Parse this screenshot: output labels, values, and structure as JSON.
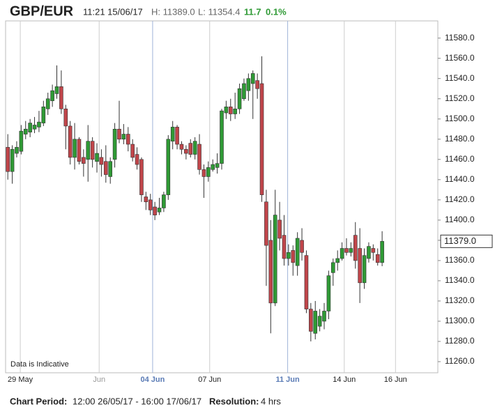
{
  "header": {
    "pair": "GBP/EUR",
    "time": "11:21 15/06/17",
    "high": "H: 11389.0",
    "low": "L: 11354.4",
    "change": "11.7",
    "change_pct": "0.1%"
  },
  "chart_data": {
    "type": "candlestick",
    "open": [
      11472,
      11448,
      11466,
      11468,
      11485,
      11487,
      11490,
      11492,
      11496,
      11510,
      11518,
      11525,
      11532,
      11510,
      11493,
      11462,
      11480,
      11462,
      11460,
      11478,
      11458,
      11462,
      11458,
      11443,
      11460,
      11490,
      11480,
      11485,
      11475,
      11465,
      11460,
      11423,
      11420,
      11413,
      11408,
      11412,
      11425,
      11478,
      11492,
      11475,
      11470,
      11476,
      11465,
      11475,
      11450,
      11443,
      11450,
      11452,
      11456,
      11506,
      11512,
      11505,
      11510,
      11520,
      11528,
      11535,
      11538,
      11535,
      11418,
      11380,
      11318,
      11400,
      11385,
      11362,
      11370,
      11355,
      11380,
      11365,
      11312,
      11288,
      11295,
      11300,
      11310,
      11348,
      11358,
      11362,
      11372,
      11368,
      11385,
      11372,
      11338,
      11362,
      11372,
      11366,
      11358
    ],
    "high": [
      11485,
      11474,
      11478,
      11494,
      11498,
      11500,
      11502,
      11508,
      11518,
      11526,
      11534,
      11553,
      11548,
      11514,
      11498,
      11496,
      11482,
      11470,
      11494,
      11482,
      11476,
      11470,
      11474,
      11462,
      11496,
      11518,
      11495,
      11492,
      11480,
      11472,
      11462,
      11428,
      11426,
      11418,
      11422,
      11428,
      11484,
      11498,
      11494,
      11478,
      11474,
      11480,
      11482,
      11485,
      11455,
      11458,
      11460,
      11466,
      11510,
      11518,
      11520,
      11526,
      11535,
      11540,
      11545,
      11548,
      11545,
      11562,
      11430,
      11400,
      11430,
      11418,
      11405,
      11376,
      11375,
      11388,
      11392,
      11370,
      11318,
      11320,
      11312,
      11318,
      11350,
      11362,
      11370,
      11378,
      11382,
      11378,
      11398,
      11392,
      11372,
      11378,
      11376,
      11372,
      11389
    ],
    "low": [
      11440,
      11436,
      11462,
      11465,
      11480,
      11482,
      11486,
      11487,
      11493,
      11504,
      11512,
      11520,
      11505,
      11470,
      11455,
      11450,
      11455,
      11443,
      11438,
      11452,
      11447,
      11443,
      11437,
      11436,
      11452,
      11476,
      11475,
      11468,
      11458,
      11450,
      11418,
      11410,
      11405,
      11400,
      11405,
      11408,
      11420,
      11470,
      11470,
      11465,
      11460,
      11462,
      11460,
      11445,
      11422,
      11438,
      11448,
      11446,
      11450,
      11500,
      11498,
      11500,
      11505,
      11518,
      11518,
      11500,
      11520,
      11418,
      11335,
      11288,
      11315,
      11370,
      11355,
      11355,
      11345,
      11345,
      11360,
      11308,
      11280,
      11282,
      11290,
      11292,
      11302,
      11335,
      11350,
      11360,
      11365,
      11364,
      11352,
      11318,
      11332,
      11358,
      11360,
      11355,
      11354.4
    ],
    "close": [
      11448,
      11470,
      11472,
      11488,
      11490,
      11496,
      11494,
      11497,
      11512,
      11520,
      11528,
      11532,
      11510,
      11493,
      11462,
      11480,
      11458,
      11456,
      11478,
      11460,
      11466,
      11455,
      11445,
      11458,
      11490,
      11480,
      11485,
      11475,
      11462,
      11455,
      11425,
      11418,
      11410,
      11405,
      11412,
      11425,
      11480,
      11492,
      11475,
      11470,
      11466,
      11465,
      11478,
      11450,
      11443,
      11452,
      11455,
      11456,
      11508,
      11512,
      11505,
      11510,
      11530,
      11535,
      11540,
      11545,
      11530,
      11425,
      11375,
      11318,
      11405,
      11382,
      11362,
      11368,
      11358,
      11382,
      11368,
      11312,
      11290,
      11310,
      11305,
      11310,
      11345,
      11358,
      11362,
      11372,
      11368,
      11372,
      11360,
      11338,
      11365,
      11374,
      11368,
      11358,
      11379
    ],
    "up_color": "#2f9a35",
    "down_color": "#c0454a",
    "xlim": [
      -0.5,
      96.5
    ],
    "xticks": [
      {
        "value": 2.8,
        "label": "29 May"
      },
      {
        "value": 20.5,
        "label": "Jun"
      },
      {
        "value": 32.5,
        "label": "04 Jun"
      },
      {
        "value": 45.3,
        "label": "07 Jun"
      },
      {
        "value": 62.8,
        "label": "11 Jun"
      },
      {
        "value": 75.5,
        "label": "14 Jun"
      },
      {
        "value": 87,
        "label": "16 Jun"
      }
    ],
    "xtick_colors": [
      "#cccccc",
      "#cccccc",
      "#9fb4d8",
      "#cccccc",
      "#9fb4d8",
      "#cccccc",
      "#cccccc"
    ],
    "ylim": [
      11249,
      11597
    ],
    "yticks": [
      {
        "value": 11260,
        "label": "11260.0"
      },
      {
        "value": 11280,
        "label": "11280.0"
      },
      {
        "value": 11300,
        "label": "11300.0"
      },
      {
        "value": 11320,
        "label": "11320.0"
      },
      {
        "value": 11340,
        "label": "11340.0"
      },
      {
        "value": 11360,
        "label": "11360.0"
      },
      {
        "value": 11380,
        "label": "11380.0"
      },
      {
        "value": 11400,
        "label": "11400.0"
      },
      {
        "value": 11420,
        "label": "11420.0"
      },
      {
        "value": 11440,
        "label": "11440.0"
      },
      {
        "value": 11460,
        "label": "11460.0"
      },
      {
        "value": 11480,
        "label": "11480.0"
      },
      {
        "value": 11500,
        "label": "11500.0"
      },
      {
        "value": 11520,
        "label": "11520.0"
      },
      {
        "value": 11540,
        "label": "11540.0"
      },
      {
        "value": 11560,
        "label": "11560.0"
      },
      {
        "value": 11580,
        "label": "11580.0"
      }
    ],
    "last_price": {
      "value": 11379,
      "label": "11379.0"
    },
    "note": "Data is Indicative"
  },
  "footer": {
    "period_label": "Chart Period:",
    "period": "12:00 26/05/17 - 16:00 17/06/17",
    "resolution_label": "Resolution:",
    "resolution": "4 hrs"
  }
}
